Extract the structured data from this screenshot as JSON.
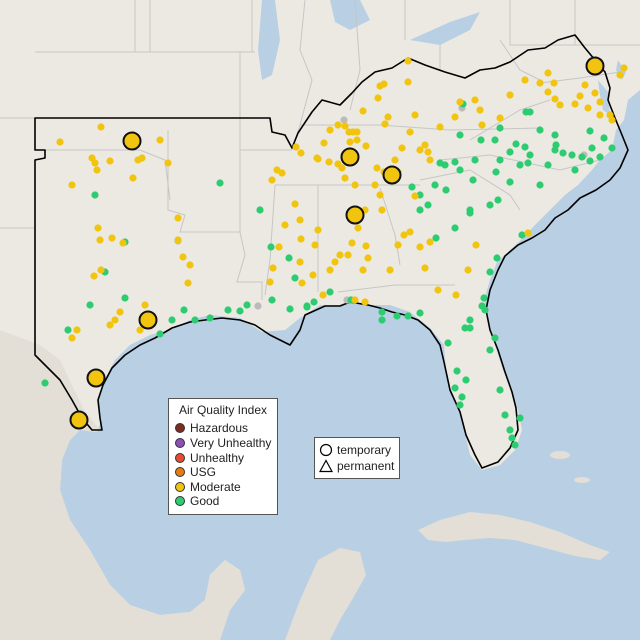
{
  "map": {
    "region": "Southeastern United States",
    "colors": {
      "water": "#b9cfe3",
      "land": "#ece9e3",
      "land_shaded": "#e5e1da",
      "state_border": "#c0c0c0",
      "region_outline": "#000000"
    }
  },
  "legend": {
    "title": "Air Quality Index",
    "categories": [
      {
        "label": "Hazardous",
        "color": "#7e2b22"
      },
      {
        "label": "Very Unhealthy",
        "color": "#8b4fb7"
      },
      {
        "label": "Unhealthy",
        "color": "#e84a2f"
      },
      {
        "label": "USG",
        "color": "#e57c12"
      },
      {
        "label": "Moderate",
        "color": "#f1c40f"
      },
      {
        "label": "Good",
        "color": "#2ecc71"
      }
    ],
    "no_data_color": "#bbbbbb"
  },
  "shape_legend": {
    "items": [
      {
        "label": "temporary",
        "shape": "circle"
      },
      {
        "label": "permanent",
        "shape": "triangle"
      }
    ]
  },
  "monitors": {
    "good_small": [
      [
        95,
        195
      ],
      [
        220,
        183
      ],
      [
        260,
        210
      ],
      [
        271,
        247
      ],
      [
        289,
        258
      ],
      [
        295,
        278
      ],
      [
        307,
        307
      ],
      [
        330,
        292
      ],
      [
        351,
        300
      ],
      [
        382,
        312
      ],
      [
        420,
        313
      ],
      [
        247,
        305
      ],
      [
        228,
        310
      ],
      [
        210,
        318
      ],
      [
        195,
        320
      ],
      [
        184,
        310
      ],
      [
        172,
        320
      ],
      [
        160,
        334
      ],
      [
        125,
        298
      ],
      [
        105,
        272
      ],
      [
        90,
        305
      ],
      [
        68,
        330
      ],
      [
        45,
        383
      ],
      [
        125,
        242
      ],
      [
        420,
        210
      ],
      [
        436,
        238
      ],
      [
        446,
        190
      ],
      [
        455,
        228
      ],
      [
        470,
        213
      ],
      [
        473,
        180
      ],
      [
        496,
        172
      ],
      [
        510,
        182
      ],
      [
        520,
        165
      ],
      [
        540,
        185
      ],
      [
        555,
        150
      ],
      [
        548,
        165
      ],
      [
        575,
        170
      ],
      [
        590,
        161
      ],
      [
        600,
        157
      ],
      [
        612,
        148
      ],
      [
        604,
        138
      ],
      [
        590,
        131
      ],
      [
        555,
        135
      ],
      [
        525,
        147
      ],
      [
        510,
        152
      ],
      [
        500,
        160
      ],
      [
        475,
        160
      ],
      [
        460,
        170
      ],
      [
        445,
        165
      ],
      [
        440,
        163
      ],
      [
        470,
        210
      ],
      [
        490,
        205
      ],
      [
        522,
        235
      ],
      [
        497,
        258
      ],
      [
        490,
        272
      ],
      [
        484,
        298
      ],
      [
        482,
        306
      ],
      [
        470,
        328
      ],
      [
        495,
        338
      ],
      [
        490,
        350
      ],
      [
        465,
        328
      ],
      [
        448,
        343
      ],
      [
        457,
        371
      ],
      [
        466,
        380
      ],
      [
        455,
        388
      ],
      [
        462,
        397
      ],
      [
        460,
        405
      ],
      [
        500,
        390
      ],
      [
        505,
        415
      ],
      [
        510,
        430
      ],
      [
        520,
        418
      ],
      [
        512,
        438
      ],
      [
        515,
        445
      ],
      [
        485,
        310
      ],
      [
        470,
        320
      ],
      [
        408,
        316
      ],
      [
        397,
        316
      ],
      [
        382,
        320
      ],
      [
        290,
        309
      ],
      [
        307,
        306
      ],
      [
        314,
        302
      ],
      [
        272,
        300
      ],
      [
        240,
        311
      ],
      [
        420,
        195
      ],
      [
        435,
        185
      ],
      [
        455,
        162
      ],
      [
        463,
        104
      ],
      [
        460,
        135
      ],
      [
        481,
        140
      ],
      [
        495,
        140
      ],
      [
        500,
        128
      ],
      [
        516,
        144
      ],
      [
        530,
        155
      ],
      [
        526,
        112
      ],
      [
        556,
        145
      ],
      [
        530,
        112
      ],
      [
        540,
        130
      ],
      [
        572,
        155
      ],
      [
        582,
        157
      ],
      [
        592,
        148
      ],
      [
        563,
        153
      ],
      [
        528,
        163
      ],
      [
        412,
        187
      ],
      [
        498,
        200
      ],
      [
        428,
        205
      ]
    ],
    "moderate_small": [
      [
        60,
        142
      ],
      [
        92,
        158
      ],
      [
        95,
        163
      ],
      [
        97,
        170
      ],
      [
        110,
        161
      ],
      [
        133,
        178
      ],
      [
        138,
        160
      ],
      [
        142,
        158
      ],
      [
        168,
        163
      ],
      [
        160,
        140
      ],
      [
        101,
        127
      ],
      [
        72,
        185
      ],
      [
        98,
        228
      ],
      [
        100,
        240
      ],
      [
        112,
        238
      ],
      [
        123,
        243
      ],
      [
        101,
        270
      ],
      [
        94,
        276
      ],
      [
        77,
        330
      ],
      [
        72,
        338
      ],
      [
        110,
        325
      ],
      [
        115,
        320
      ],
      [
        120,
        312
      ],
      [
        140,
        330
      ],
      [
        145,
        305
      ],
      [
        178,
        218
      ],
      [
        183,
        257
      ],
      [
        188,
        283
      ],
      [
        178,
        240
      ],
      [
        190,
        265
      ],
      [
        272,
        180
      ],
      [
        277,
        170
      ],
      [
        282,
        173
      ],
      [
        296,
        147
      ],
      [
        301,
        153
      ],
      [
        318,
        159
      ],
      [
        338,
        125
      ],
      [
        345,
        126
      ],
      [
        349,
        132
      ],
      [
        350,
        142
      ],
      [
        357,
        132
      ],
      [
        366,
        146
      ],
      [
        378,
        98
      ],
      [
        380,
        86
      ],
      [
        384,
        84
      ],
      [
        408,
        61
      ],
      [
        408,
        82
      ],
      [
        415,
        115
      ],
      [
        385,
        124
      ],
      [
        388,
        117
      ],
      [
        363,
        111
      ],
      [
        353,
        132
      ],
      [
        357,
        140
      ],
      [
        330,
        130
      ],
      [
        324,
        143
      ],
      [
        317,
        158
      ],
      [
        329,
        162
      ],
      [
        338,
        164
      ],
      [
        342,
        168
      ],
      [
        345,
        178
      ],
      [
        355,
        185
      ],
      [
        377,
        168
      ],
      [
        384,
        172
      ],
      [
        398,
        172
      ],
      [
        395,
        160
      ],
      [
        402,
        148
      ],
      [
        410,
        132
      ],
      [
        420,
        150
      ],
      [
        425,
        145
      ],
      [
        428,
        152
      ],
      [
        430,
        160
      ],
      [
        440,
        127
      ],
      [
        455,
        117
      ],
      [
        460,
        102
      ],
      [
        475,
        100
      ],
      [
        480,
        110
      ],
      [
        482,
        125
      ],
      [
        500,
        118
      ],
      [
        510,
        95
      ],
      [
        525,
        80
      ],
      [
        540,
        83
      ],
      [
        548,
        92
      ],
      [
        555,
        99
      ],
      [
        560,
        105
      ],
      [
        575,
        104
      ],
      [
        580,
        96
      ],
      [
        585,
        85
      ],
      [
        595,
        93
      ],
      [
        600,
        115
      ],
      [
        588,
        108
      ],
      [
        600,
        102
      ],
      [
        610,
        115
      ],
      [
        612,
        120
      ],
      [
        620,
        75
      ],
      [
        624,
        68
      ],
      [
        548,
        73
      ],
      [
        554,
        83
      ],
      [
        380,
        195
      ],
      [
        382,
        210
      ],
      [
        375,
        185
      ],
      [
        365,
        210
      ],
      [
        358,
        228
      ],
      [
        366,
        246
      ],
      [
        352,
        243
      ],
      [
        348,
        255
      ],
      [
        368,
        258
      ],
      [
        363,
        270
      ],
      [
        340,
        255
      ],
      [
        335,
        262
      ],
      [
        330,
        270
      ],
      [
        318,
        230
      ],
      [
        315,
        245
      ],
      [
        313,
        275
      ],
      [
        323,
        295
      ],
      [
        355,
        300
      ],
      [
        365,
        302
      ],
      [
        390,
        270
      ],
      [
        398,
        245
      ],
      [
        404,
        235
      ],
      [
        415,
        196
      ],
      [
        410,
        232
      ],
      [
        430,
        242
      ],
      [
        438,
        290
      ],
      [
        456,
        295
      ],
      [
        468,
        270
      ],
      [
        476,
        245
      ],
      [
        528,
        233
      ],
      [
        420,
        247
      ],
      [
        425,
        268
      ],
      [
        300,
        220
      ],
      [
        295,
        204
      ],
      [
        285,
        225
      ],
      [
        279,
        247
      ],
      [
        273,
        268
      ],
      [
        270,
        282
      ],
      [
        302,
        283
      ],
      [
        300,
        262
      ],
      [
        301,
        239
      ]
    ],
    "good_large": [],
    "moderate_large": [
      [
        132,
        141
      ],
      [
        350,
        157
      ],
      [
        392,
        175
      ],
      [
        355,
        215
      ],
      [
        148,
        320
      ],
      [
        96,
        378
      ],
      [
        79,
        420
      ],
      [
        595,
        66
      ]
    ],
    "no_data_small": [
      [
        178,
        241
      ],
      [
        344,
        120
      ],
      [
        258,
        306
      ],
      [
        347,
        300
      ],
      [
        584,
        155
      ],
      [
        462,
        108
      ]
    ]
  }
}
